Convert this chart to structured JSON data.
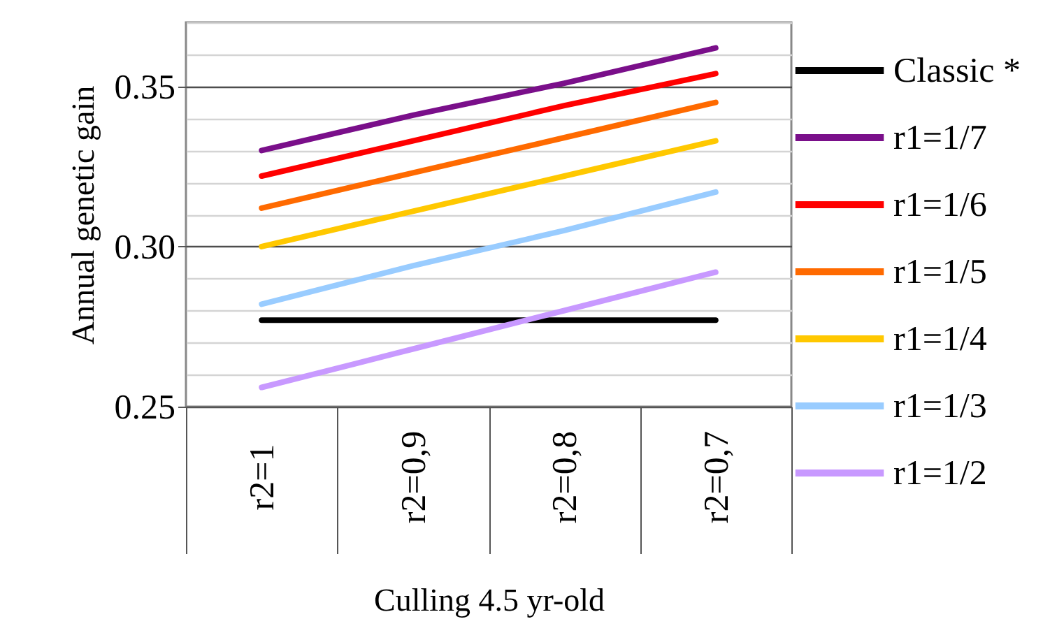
{
  "chart_data": {
    "type": "line",
    "ylabel": "Annual genetic gain",
    "xlabel": "Culling 4.5 yr-old",
    "categories": [
      "r2=1",
      "r2=0,9",
      "r2=0,8",
      "r2=0,7"
    ],
    "series": [
      {
        "name": "Classic *",
        "color": "#000000",
        "values": [
          0.277,
          0.277,
          0.277,
          0.277
        ]
      },
      {
        "name": "r1=1/7",
        "color": "#7a0f8a",
        "values": [
          0.33,
          0.341,
          0.351,
          0.362
        ]
      },
      {
        "name": "r1=1/6",
        "color": "#ff0000",
        "values": [
          0.322,
          0.333,
          0.344,
          0.354
        ]
      },
      {
        "name": "r1=1/5",
        "color": "#ff6a00",
        "values": [
          0.312,
          0.323,
          0.334,
          0.345
        ]
      },
      {
        "name": "r1=1/4",
        "color": "#ffc800",
        "values": [
          0.3,
          0.311,
          0.322,
          0.333
        ]
      },
      {
        "name": "r1=1/3",
        "color": "#99ccff",
        "values": [
          0.282,
          0.294,
          0.305,
          0.317
        ]
      },
      {
        "name": "r1=1/2",
        "color": "#c899ff",
        "values": [
          0.256,
          0.268,
          0.28,
          0.292
        ]
      }
    ],
    "ylim": [
      0.25,
      0.37
    ],
    "yticks": [
      0.25,
      {
        "value": 0.26,
        "label": null
      },
      {
        "value": 0.27,
        "label": null
      },
      {
        "value": 0.28,
        "label": null
      },
      {
        "value": 0.29,
        "label": null
      },
      {
        "value": 0.3,
        "label": "0.30"
      },
      {
        "value": 0.31,
        "label": null
      },
      {
        "value": 0.32,
        "label": null
      },
      {
        "value": 0.33,
        "label": null
      },
      {
        "value": 0.34,
        "label": null
      },
      0.35,
      {
        "value": 0.36,
        "label": null
      },
      {
        "value": 0.37,
        "label": null
      }
    ],
    "grid": "y",
    "legend": "right",
    "marker": "none",
    "line_style": "solid"
  }
}
